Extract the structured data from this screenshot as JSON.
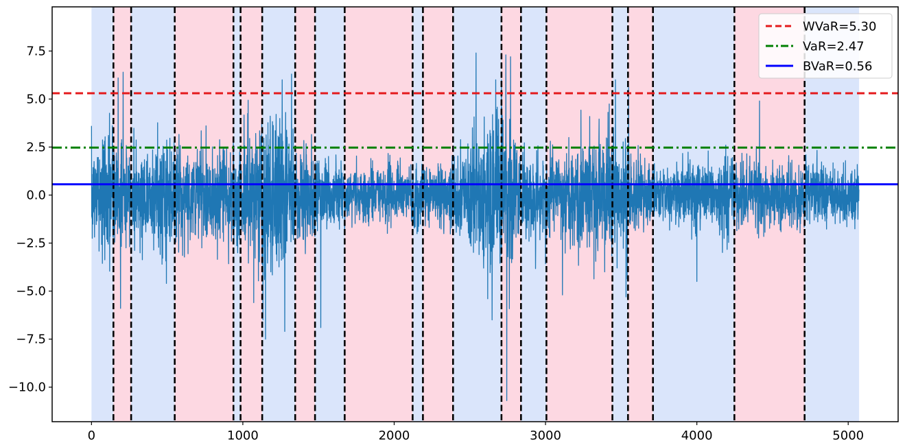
{
  "chart_data": {
    "type": "line",
    "title": "",
    "xlabel": "",
    "ylabel": "",
    "xlim": [
      -260,
      5330
    ],
    "ylim": [
      -11.8,
      9.8
    ],
    "xticks": [
      0,
      1000,
      2000,
      3000,
      4000,
      5000
    ],
    "yticks": [
      -10.0,
      -7.5,
      -5.0,
      -2.5,
      0.0,
      2.5,
      5.0,
      7.5
    ],
    "xtick_labels": [
      "0",
      "1000",
      "2000",
      "3000",
      "4000",
      "5000"
    ],
    "ytick_labels": [
      "−10.0",
      "−7.5",
      "−5.0",
      "−2.5",
      "0.0",
      "2.5",
      "5.0",
      "7.5"
    ],
    "n_points": 5072,
    "series_color": "#1f77b4",
    "change_points": [
      145,
      262,
      550,
      938,
      985,
      1128,
      1346,
      1477,
      1673,
      2122,
      2190,
      2389,
      2709,
      2838,
      3006,
      3442,
      3545,
      3710,
      4248,
      4712
    ],
    "regimes": [
      {
        "start": 0,
        "end": 145,
        "kind": "low"
      },
      {
        "start": 145,
        "end": 262,
        "kind": "high"
      },
      {
        "start": 262,
        "end": 550,
        "kind": "low"
      },
      {
        "start": 550,
        "end": 938,
        "kind": "high"
      },
      {
        "start": 938,
        "end": 985,
        "kind": "low"
      },
      {
        "start": 985,
        "end": 1128,
        "kind": "high"
      },
      {
        "start": 1128,
        "end": 1346,
        "kind": "low"
      },
      {
        "start": 1346,
        "end": 1477,
        "kind": "high"
      },
      {
        "start": 1477,
        "end": 1673,
        "kind": "low"
      },
      {
        "start": 1673,
        "end": 2122,
        "kind": "high"
      },
      {
        "start": 2122,
        "end": 2190,
        "kind": "low"
      },
      {
        "start": 2190,
        "end": 2389,
        "kind": "high"
      },
      {
        "start": 2389,
        "end": 2709,
        "kind": "low"
      },
      {
        "start": 2709,
        "end": 2838,
        "kind": "high"
      },
      {
        "start": 2838,
        "end": 3006,
        "kind": "low"
      },
      {
        "start": 3006,
        "end": 3442,
        "kind": "high"
      },
      {
        "start": 3442,
        "end": 3545,
        "kind": "low"
      },
      {
        "start": 3545,
        "end": 3710,
        "kind": "high"
      },
      {
        "start": 3710,
        "end": 4248,
        "kind": "low"
      },
      {
        "start": 4248,
        "end": 4712,
        "kind": "high"
      },
      {
        "start": 4712,
        "end": 5072,
        "kind": "low"
      }
    ],
    "regime_colors": {
      "low": "#dae5fb",
      "high": "#fdd8e2"
    },
    "volatility_profile": [
      {
        "x": 0,
        "sd": 1.2
      },
      {
        "x": 145,
        "sd": 1.9
      },
      {
        "x": 262,
        "sd": 1.1
      },
      {
        "x": 500,
        "sd": 1.6
      },
      {
        "x": 550,
        "sd": 1.3
      },
      {
        "x": 938,
        "sd": 1.4
      },
      {
        "x": 985,
        "sd": 1.3
      },
      {
        "x": 1128,
        "sd": 2.5
      },
      {
        "x": 1346,
        "sd": 1.5
      },
      {
        "x": 1477,
        "sd": 1.1
      },
      {
        "x": 1673,
        "sd": 0.75
      },
      {
        "x": 2122,
        "sd": 0.8
      },
      {
        "x": 2190,
        "sd": 0.75
      },
      {
        "x": 2389,
        "sd": 0.9
      },
      {
        "x": 2709,
        "sd": 2.6
      },
      {
        "x": 2838,
        "sd": 1.2
      },
      {
        "x": 3006,
        "sd": 0.9
      },
      {
        "x": 3442,
        "sd": 2.0
      },
      {
        "x": 3545,
        "sd": 1.4
      },
      {
        "x": 3710,
        "sd": 0.8
      },
      {
        "x": 4248,
        "sd": 1.0
      },
      {
        "x": 4712,
        "sd": 0.8
      },
      {
        "x": 5072,
        "sd": 0.7
      }
    ],
    "extremes": [
      {
        "x": 0,
        "y": 3.6
      },
      {
        "x": 176,
        "y": 6.1
      },
      {
        "x": 192,
        "y": -5.9
      },
      {
        "x": 209,
        "y": 6.4
      },
      {
        "x": 495,
        "y": -4.6
      },
      {
        "x": 1150,
        "y": -7.5
      },
      {
        "x": 1260,
        "y": 6.0
      },
      {
        "x": 1277,
        "y": -7.1
      },
      {
        "x": 1322,
        "y": 6.3
      },
      {
        "x": 1515,
        "y": -6.9
      },
      {
        "x": 2541,
        "y": 7.4
      },
      {
        "x": 2618,
        "y": -5.4
      },
      {
        "x": 2738,
        "y": 7.3
      },
      {
        "x": 2744,
        "y": -10.7
      },
      {
        "x": 2769,
        "y": -10.7
      },
      {
        "x": 2769,
        "y": 7.2
      },
      {
        "x": 3112,
        "y": -5.2
      },
      {
        "x": 3462,
        "y": 6.0
      },
      {
        "x": 3532,
        "y": -5.3
      },
      {
        "x": 3549,
        "y": 5.6
      },
      {
        "x": 4000,
        "y": -4.5
      },
      {
        "x": 4414,
        "y": 4.9
      }
    ],
    "thresholds": [
      {
        "name": "WVaR=5.30",
        "value": 5.3,
        "color": "#e41a1c",
        "style": "dashed"
      },
      {
        "name": "VaR=2.47",
        "value": 2.47,
        "color": "#008000",
        "style": "dashdot"
      },
      {
        "name": "BVaR=0.56",
        "value": 0.56,
        "color": "#0000ff",
        "style": "solid"
      }
    ],
    "legend_position": "top-right",
    "grid": false
  }
}
